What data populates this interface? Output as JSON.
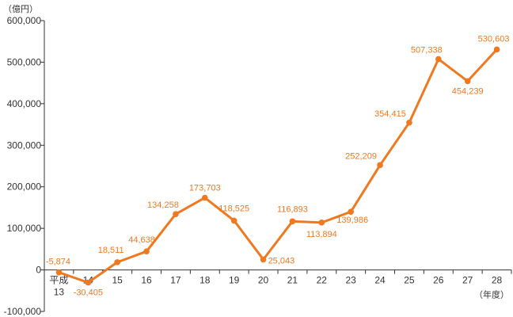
{
  "chart_data": {
    "type": "line",
    "y_unit": "（億円）",
    "x_unit": "（年度）",
    "x_tick_labels": [
      "平成\n13",
      "14",
      "15",
      "16",
      "17",
      "18",
      "19",
      "20",
      "21",
      "22",
      "23",
      "24",
      "25",
      "26",
      "27",
      "28"
    ],
    "categories": [
      "13",
      "14",
      "15",
      "16",
      "17",
      "18",
      "19",
      "20",
      "21",
      "22",
      "23",
      "24",
      "25",
      "26",
      "27",
      "28"
    ],
    "series": [
      {
        "values": [
          -5874,
          -30405,
          18511,
          44638,
          134258,
          173703,
          118525,
          25043,
          116893,
          113894,
          139986,
          252209,
          354415,
          507338,
          454239,
          530603
        ],
        "data_labels": [
          "-5,874",
          "-30,405",
          "18,511",
          "44,638",
          "134,258",
          "173,703",
          "118,525",
          "25,043",
          "116,893",
          "113,894",
          "139,986",
          "252,209",
          "354,415",
          "507,338",
          "454,239",
          "530,603"
        ],
        "color": "#f0781e"
      }
    ],
    "y_ticks": [
      "600,000",
      "500,000",
      "400,000",
      "300,000",
      "200,000",
      "100,000",
      "0",
      "-100,000"
    ],
    "ylim": [
      -100000,
      600000
    ],
    "grid": false,
    "legend": "none"
  }
}
